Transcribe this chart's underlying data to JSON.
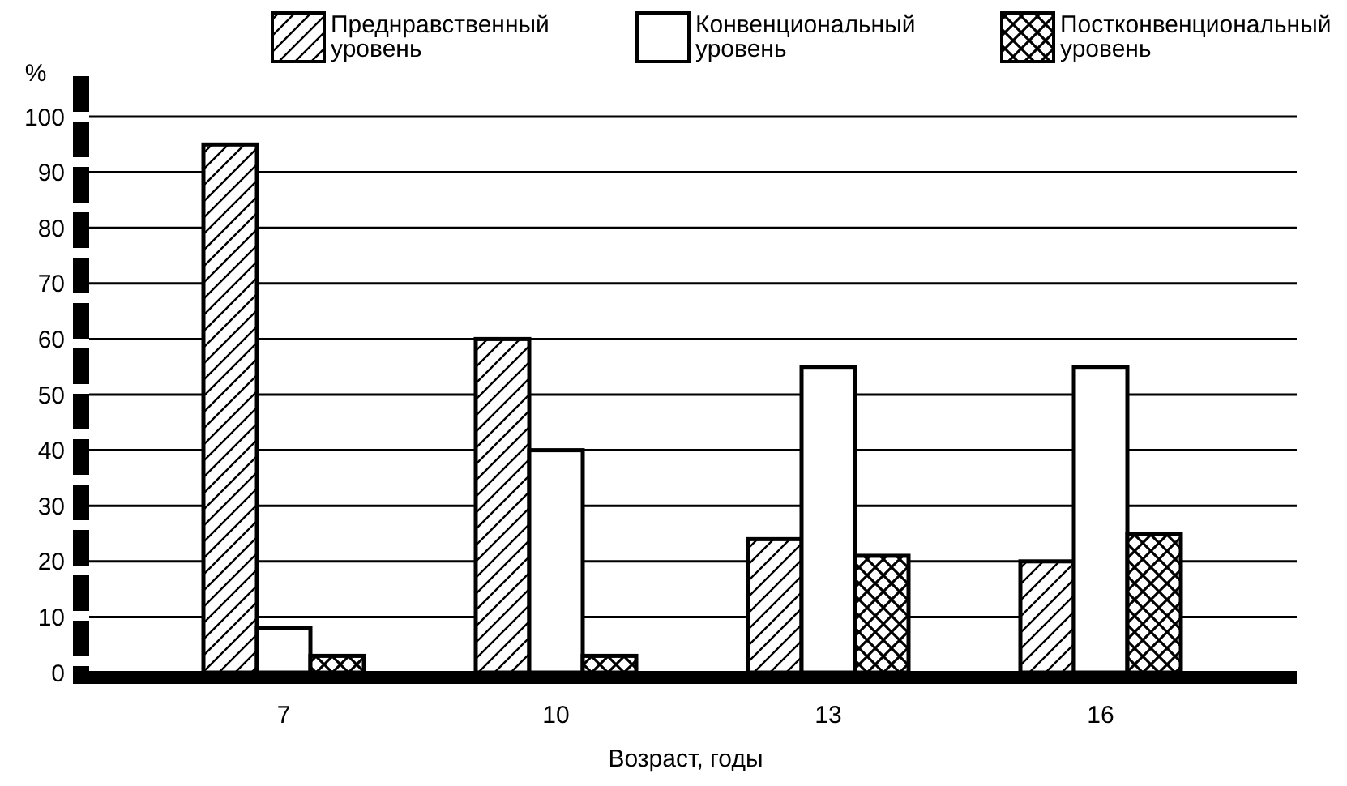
{
  "chart_data": {
    "type": "bar",
    "xlabel": "Возраст, годы",
    "ylabel": "%",
    "categories": [
      "7",
      "10",
      "13",
      "16"
    ],
    "series": [
      {
        "name": "Преднравственный уровень",
        "color": "#000000",
        "values": [
          95,
          60,
          24,
          20
        ]
      },
      {
        "name": "Конвенциональный уровень",
        "color": "#000000",
        "values": [
          8,
          40,
          55,
          55
        ]
      },
      {
        "name": "Постконвенциональный уровень",
        "color": "#000000",
        "values": [
          3,
          3,
          21,
          25
        ]
      }
    ],
    "ylim": [
      0,
      100
    ],
    "yticks": [
      0,
      10,
      20,
      30,
      40,
      50,
      60,
      70,
      80,
      90,
      100
    ],
    "grid": "y",
    "legend": "top"
  }
}
